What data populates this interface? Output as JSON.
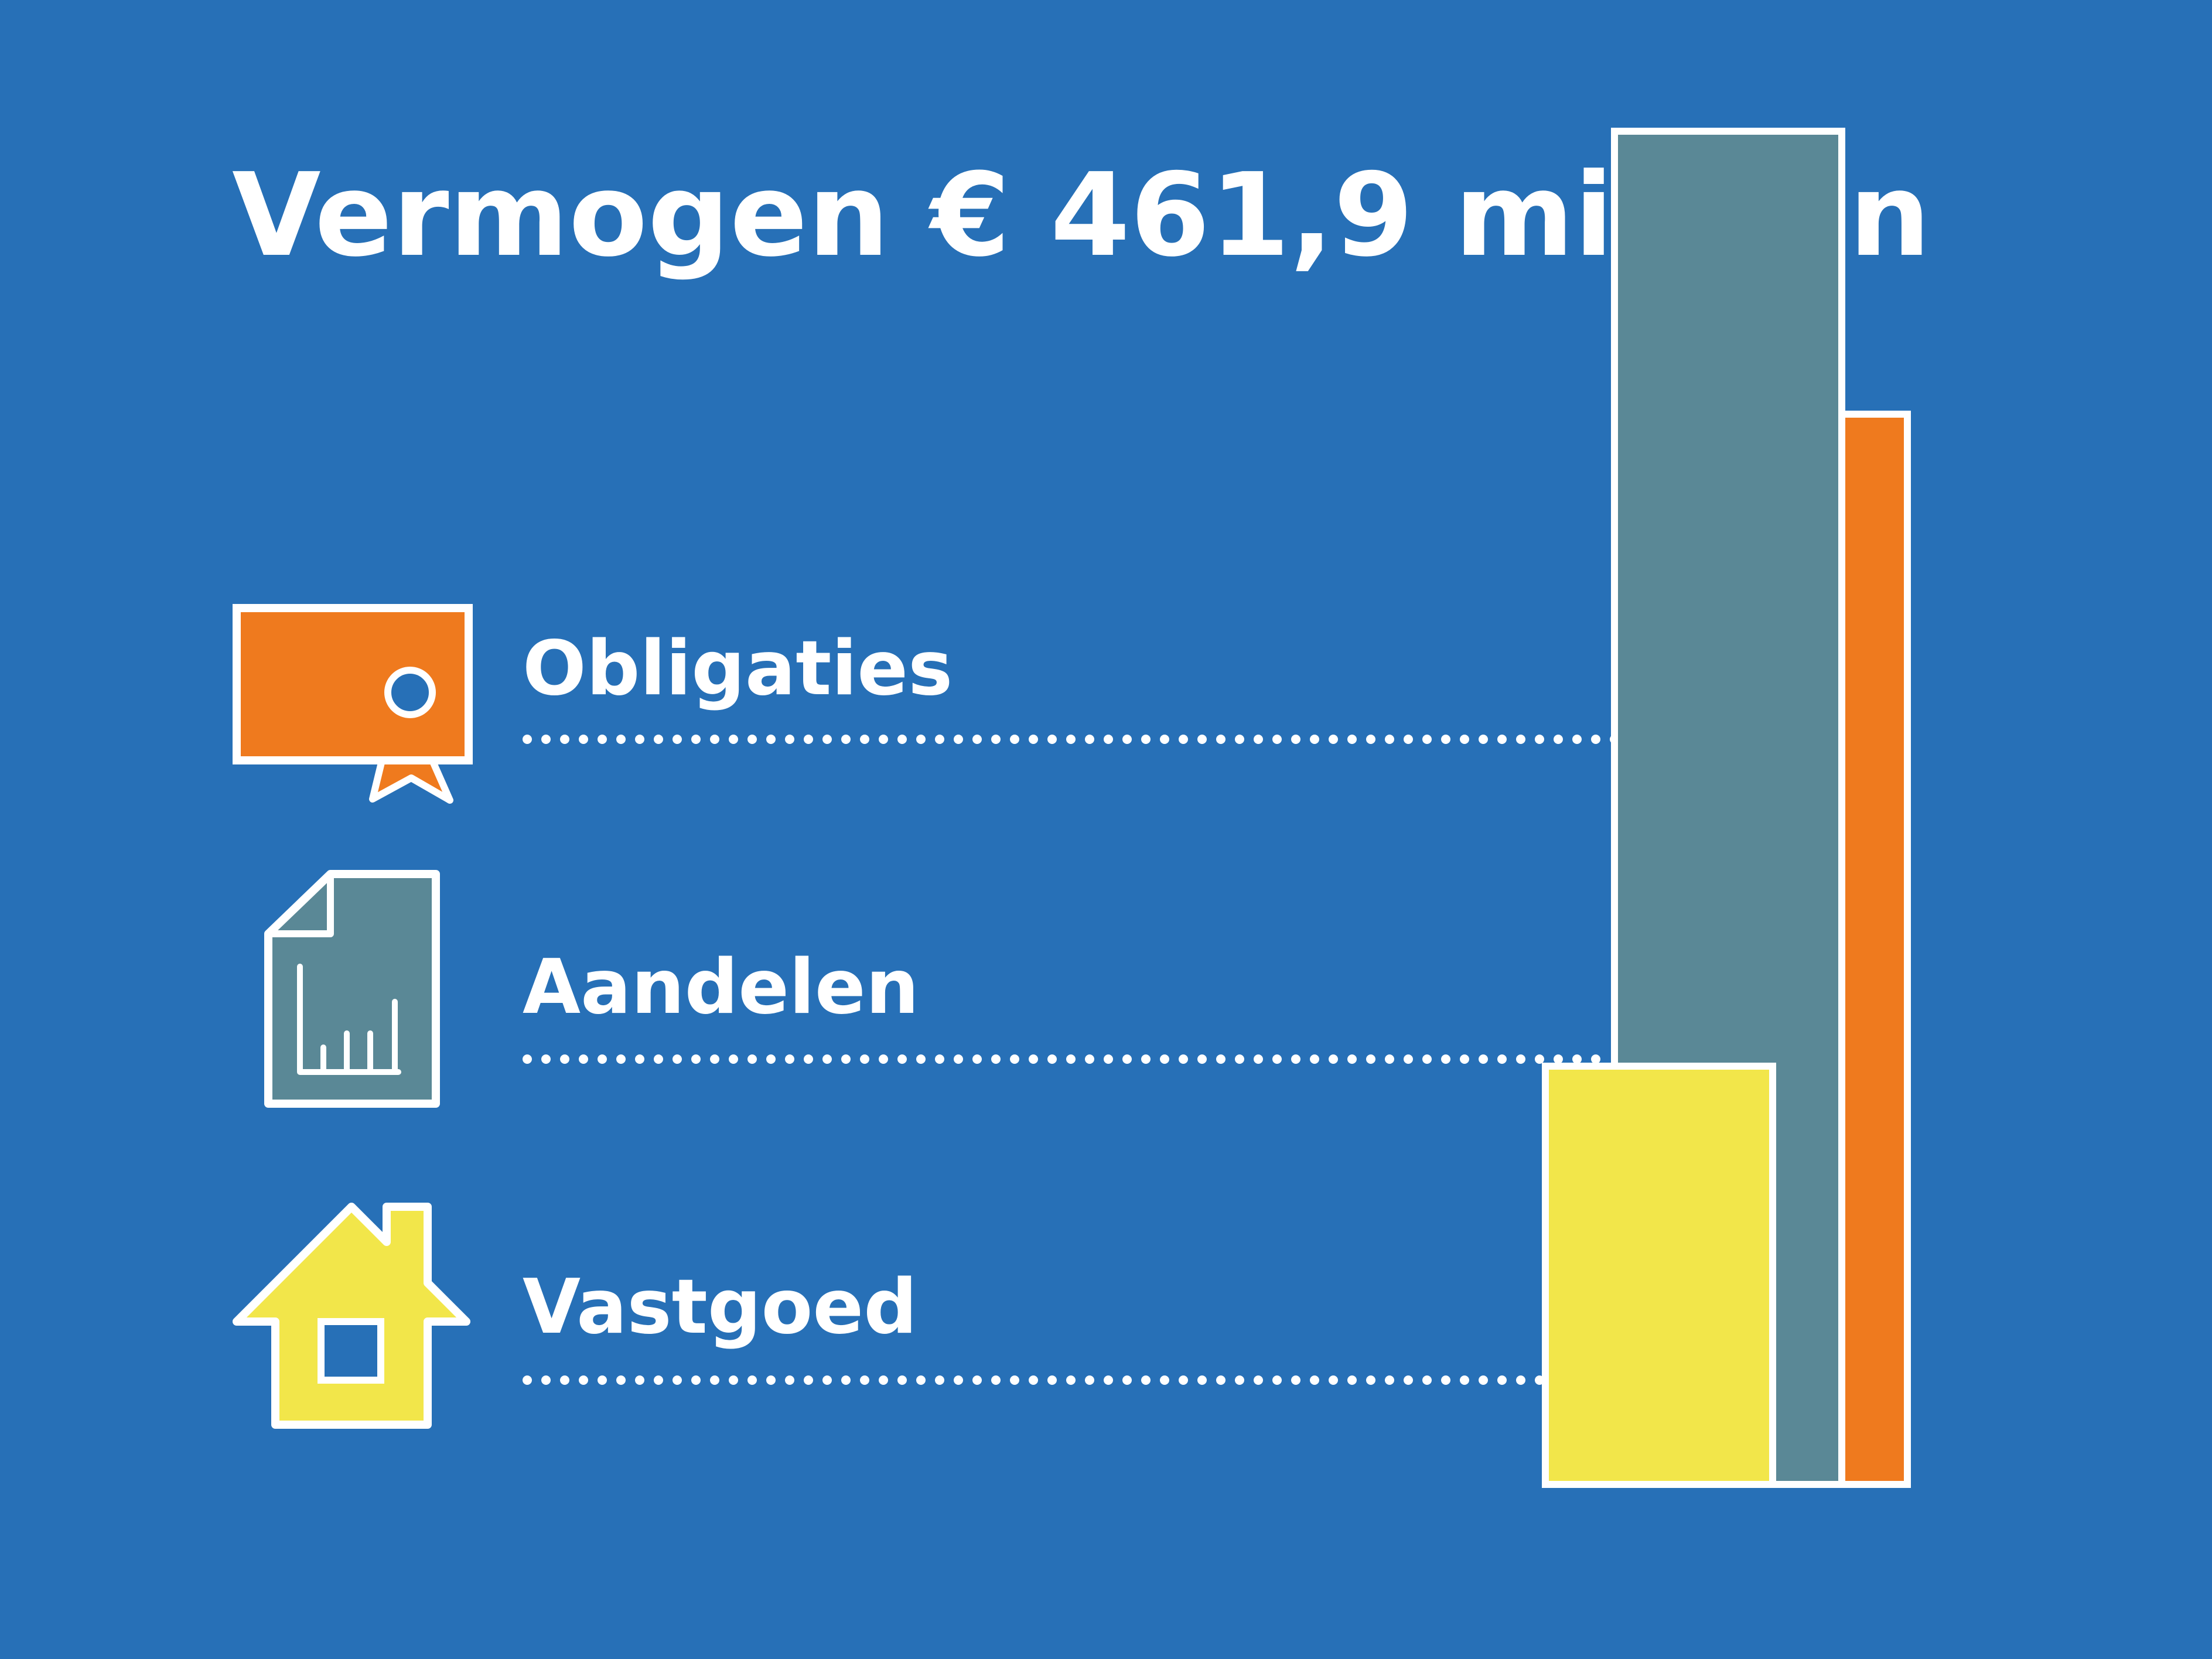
{
  "title": {
    "word": "Vermogen",
    "amount": "€ 461,9",
    "unit": "miljoen"
  },
  "colors": {
    "background": "#2770b7",
    "obligaties": "#ef7a1e",
    "aandelen": "#5a8896",
    "vastgoed": "#f2e64a",
    "outline": "#ffffff"
  },
  "icons": {
    "obligaties": "certificate-ribbon-icon",
    "aandelen": "stock-report-document-icon",
    "vastgoed": "house-icon"
  },
  "chart_data": {
    "type": "bar",
    "title": "Vermogen € 461,9 miljoen",
    "categories": [
      "Obligaties",
      "Aandelen",
      "Vastgoed"
    ],
    "values": [
      174,
      220,
      68
    ],
    "unit": "€ miljoen",
    "value_labels_shown": false,
    "stacking": "overlapping-staircase",
    "legend": "left",
    "grid": false,
    "xlabel": "",
    "ylabel": ""
  }
}
